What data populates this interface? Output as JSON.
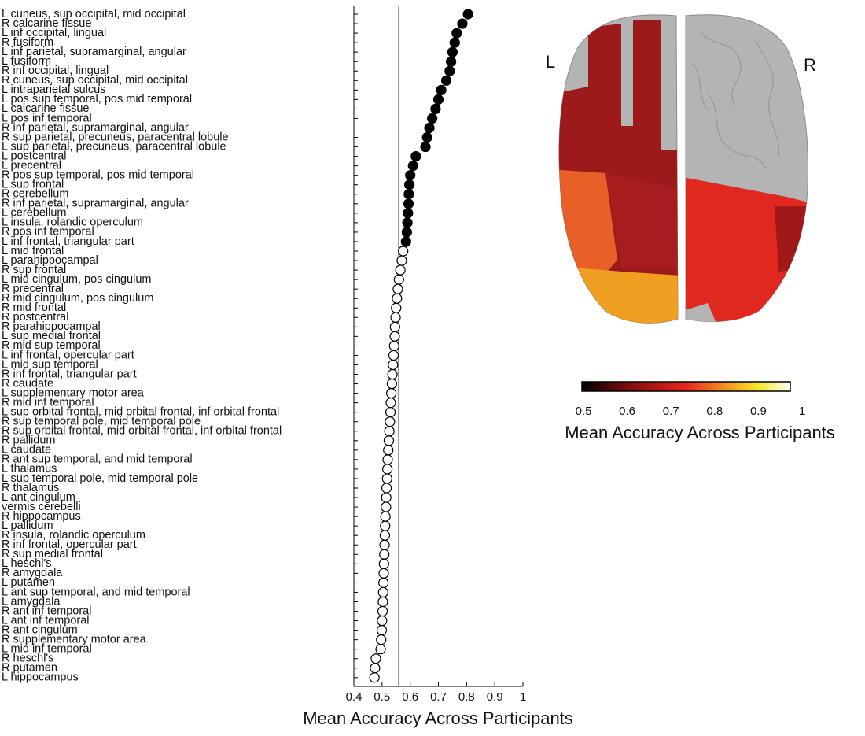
{
  "chart_data": {
    "type": "dot",
    "xlabel": "Mean Accuracy Across Participants",
    "categories": [
      "L cuneus, sup occipital, mid occipital",
      "R calcarine fissue",
      "L inf occipital, lingual",
      "R fusiform",
      "L inf parietal, supramarginal, angular",
      "L fusiform",
      "R inf occipital, lingual",
      "R cuneus, sup occipital, mid occipital",
      "L intraparietal sulcus",
      "L pos sup temporal, pos mid temporal",
      "L calcarine fissue",
      "L pos inf temporal",
      "R inf parietal, supramarginal, angular",
      "R sup parietal, precuneus, paracentral lobule",
      "L sup parietal, precuneus, paracentral lobule",
      "L postcentral",
      "L precentral",
      "R pos sup temporal, pos mid temporal",
      "L sup frontal",
      "R cerebellum",
      "R inf parietal, supramarginal, angular",
      "L cerebellum",
      "L insula, rolandic operculum",
      "R pos inf temporal",
      "L inf frontal, triangular part",
      "L mid frontal",
      "L parahippocampal",
      "R sup frontal",
      "L mid cingulum, pos cingulum",
      "R precentral",
      "R mid cingulum, pos cingulum",
      "R mid frontal",
      "R postcentral",
      "R parahippocampal",
      "L sup medial frontal",
      "R mid sup temporal",
      "L inf frontal, opercular part",
      "L mid sup temporal",
      "R inf frontal, triangular part",
      "R caudate",
      "L supplementary motor area",
      "R mid inf temporal",
      "L sup orbital frontal, mid orbital frontal, inf orbital frontal",
      "R sup temporal pole, mid temporal pole",
      "R sup orbital frontal, mid orbital frontal, inf orbital frontal",
      "R pallidum",
      "L caudate",
      "R ant sup temporal, and mid temporal",
      "L thalamus",
      "L sup temporal pole, mid temporal pole",
      "R thalamus",
      "L ant cingulum",
      "vermis cerebelli",
      "R hippocampus",
      "L pallidum",
      "R insula, rolandic operculum",
      "R inf frontal, opercular part",
      "R sup medial frontal",
      "L heschl's",
      "R amygdala",
      "L putamen",
      "L ant sup temporal, and mid temporal",
      "L amygdala",
      "R ant inf temporal",
      "L ant inf temporal",
      "R ant cingulum",
      "R supplementary motor area",
      "L mid inf temporal",
      "R heschl's",
      "R putamen",
      "L hippocampus"
    ],
    "values": [
      0.805,
      0.785,
      0.765,
      0.758,
      0.75,
      0.745,
      0.74,
      0.728,
      0.71,
      0.7,
      0.69,
      0.678,
      0.668,
      0.66,
      0.654,
      0.62,
      0.61,
      0.6,
      0.597,
      0.595,
      0.594,
      0.592,
      0.59,
      0.588,
      0.585,
      0.575,
      0.57,
      0.565,
      0.56,
      0.556,
      0.553,
      0.55,
      0.548,
      0.546,
      0.545,
      0.543,
      0.541,
      0.539,
      0.537,
      0.535,
      0.533,
      0.531,
      0.53,
      0.528,
      0.526,
      0.524,
      0.522,
      0.52,
      0.519,
      0.518,
      0.516,
      0.515,
      0.514,
      0.512,
      0.511,
      0.51,
      0.509,
      0.508,
      0.507,
      0.506,
      0.505,
      0.504,
      0.503,
      0.502,
      0.5,
      0.499,
      0.497,
      0.495,
      0.478,
      0.475,
      0.473
    ],
    "filled": [
      true,
      true,
      true,
      true,
      true,
      true,
      true,
      true,
      true,
      true,
      true,
      true,
      true,
      true,
      true,
      true,
      true,
      true,
      true,
      true,
      true,
      true,
      true,
      true,
      true,
      false,
      false,
      false,
      false,
      false,
      false,
      false,
      false,
      false,
      false,
      false,
      false,
      false,
      false,
      false,
      false,
      false,
      false,
      false,
      false,
      false,
      false,
      false,
      false,
      false,
      false,
      false,
      false,
      false,
      false,
      false,
      false,
      false,
      false,
      false,
      false,
      false,
      false,
      false,
      false,
      false,
      false,
      false,
      false,
      false,
      false
    ],
    "color": "#000000",
    "reference_line": 0.558,
    "xlim": [
      0.4,
      1
    ],
    "xticks": [
      0.4,
      0.5,
      0.6,
      0.7,
      0.8,
      0.9,
      1
    ],
    "brain_labels": [
      "L",
      "R"
    ],
    "colorbar": {
      "lim": [
        0.5,
        1
      ],
      "ticks": [
        0.5,
        0.6,
        0.7,
        0.8,
        0.9,
        1
      ],
      "label": "Mean Accuracy Across Participants"
    }
  }
}
